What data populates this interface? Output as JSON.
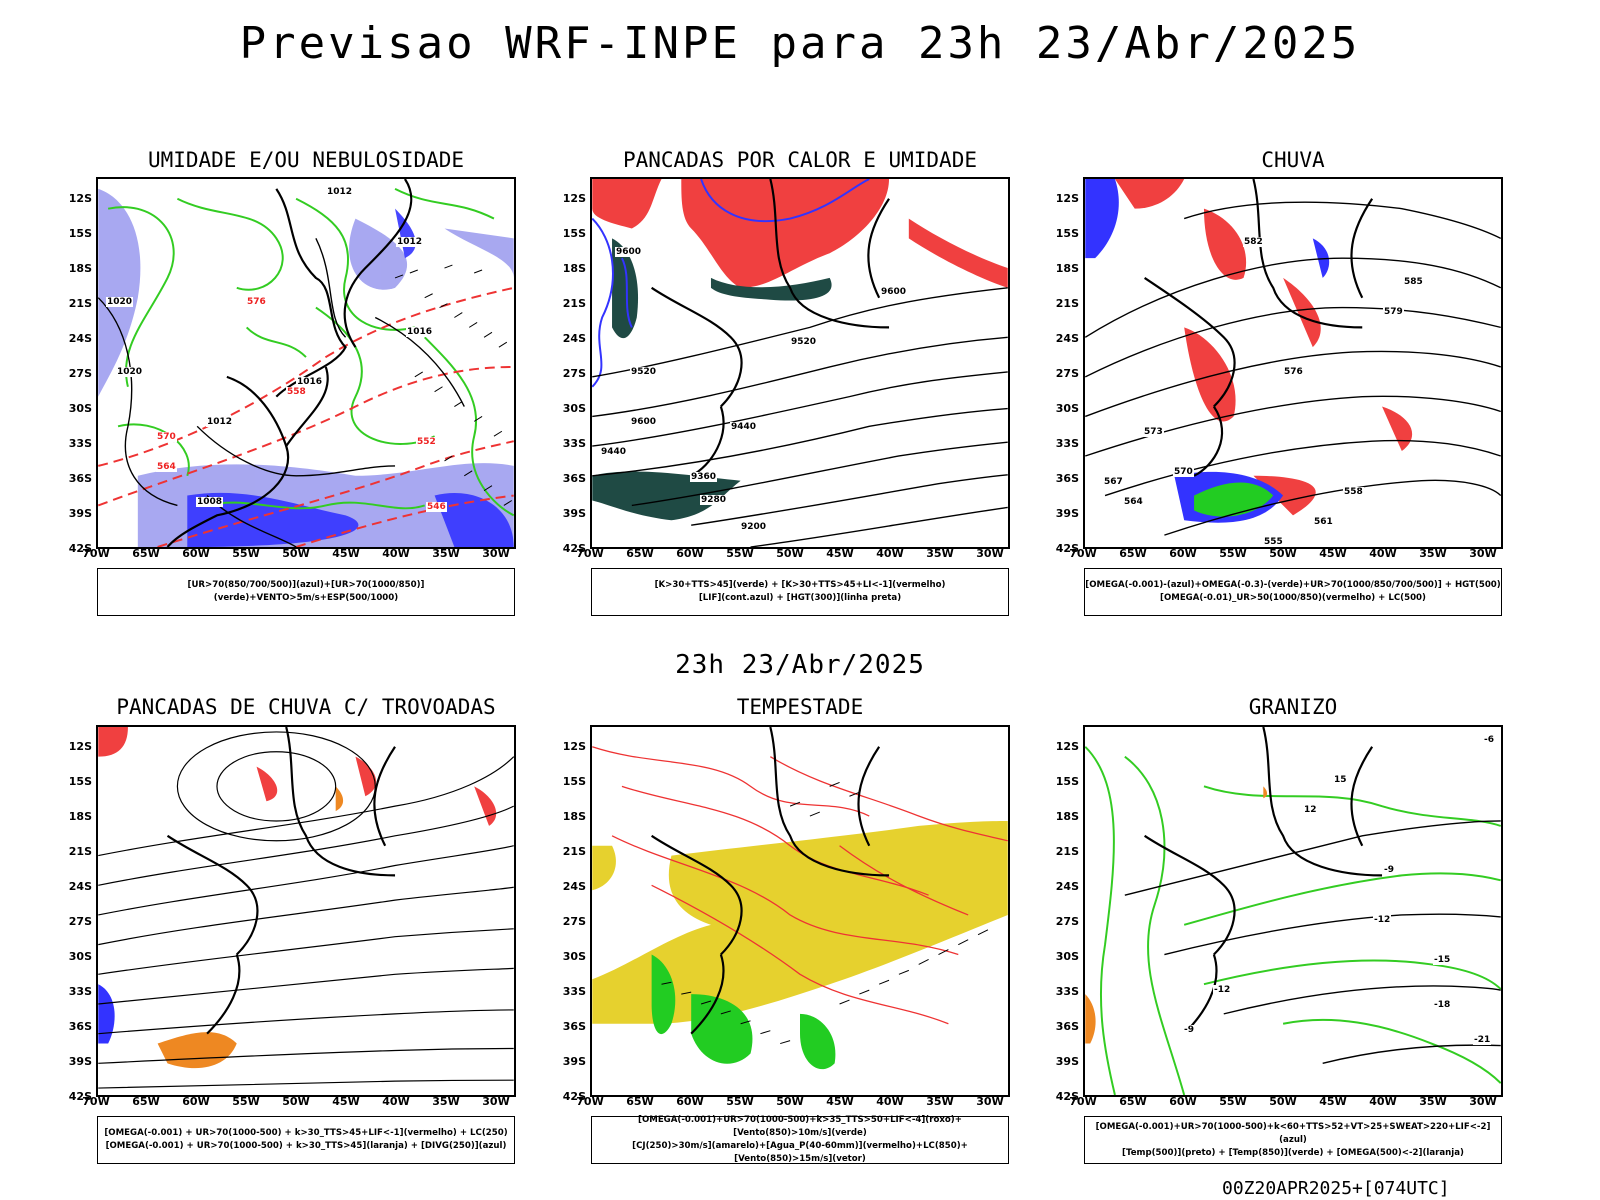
{
  "title": "Previsao WRF-INPE  para 23h 23/Abr/2025",
  "mid_date": "23h 23/Abr/2025",
  "run_stamp": "00Z20APR2025+[074UTC]",
  "lat_labels": [
    "12S",
    "15S",
    "18S",
    "21S",
    "24S",
    "27S",
    "30S",
    "33S",
    "36S",
    "39S",
    "42S"
  ],
  "lon_labels": [
    "70W",
    "65W",
    "60W",
    "55W",
    "50W",
    "45W",
    "40W",
    "35W",
    "30W"
  ],
  "panels": [
    {
      "title": "UMIDADE E/OU NEBULOSIDADE",
      "legend": [
        "[UR>70(850/700/500)](azul)+[UR>70(1000/850)](verde)+VENTO>5m/s+ESP(500/1000)"
      ],
      "contour_labels": [
        "1012",
        "1012",
        "1016",
        "1016",
        "1020",
        "1020",
        "1008",
        "1012",
        "570",
        "576",
        "564",
        "558",
        "552",
        "546"
      ]
    },
    {
      "title": "PANCADAS POR CALOR E UMIDADE",
      "legend": [
        "[K>30+TTS>45](verde) + [K>30+TTS>45+LI<-1](vermelho)",
        "[LIF](cont.azul) + [HGT(300)](linha preta)"
      ],
      "contour_labels": [
        "9600",
        "9600",
        "9520",
        "9520",
        "9440",
        "9440",
        "9360",
        "9280",
        "9200",
        "9600"
      ]
    },
    {
      "title": "CHUVA",
      "legend": [
        "[OMEGA(-0.001)-(azul)+OMEGA(-0.3)-(verde)+UR>70(1000/850/700/500)] + HGT(500)",
        "[OMEGA(-0.01)_UR>50(1000/850)(vermelho) + LC(500)"
      ],
      "contour_labels": [
        "582",
        "579",
        "576",
        "573",
        "570",
        "567",
        "564",
        "561",
        "558",
        "555",
        "585"
      ]
    },
    {
      "title": "PANCADAS DE CHUVA C/ TROVOADAS",
      "legend": [
        "[OMEGA(-0.001) + UR>70(1000-500) + k>30_TTS>45+LIF<-1](vermelho) + LC(250)",
        "[OMEGA(-0.001) + UR>70(1000-500) + k>30_TTS>45](laranja) + [DIVG(250)](azul)"
      ],
      "contour_labels": []
    },
    {
      "title": "TEMPESTADE",
      "legend": [
        "[OMEGA(-0.001)+UR>70(1000-500)+k>35_TTS>50+LIF<-4](roxo)+[Vento(850)>10m/s](verde)",
        "[CJ(250)>30m/s](amarelo)+[Agua_P(40-60mm)](vermelho)+LC(850)+[Vento(850)>15m/s](vetor)"
      ],
      "contour_labels": []
    },
    {
      "title": "GRANIZO",
      "legend": [
        "[OMEGA(-0.001)+UR>70(1000-500)+k<60+TTS>52+VT>25+SWEAT>220+LIF<-2](azul)",
        "[Temp(500)](preto) + [Temp(850)](verde) + [OMEGA(500)<-2](laranja)"
      ],
      "contour_labels": [
        "-6",
        "-9",
        "-12",
        "-15",
        "-18",
        "-21",
        "12",
        "15",
        "-12",
        "-9"
      ]
    }
  ],
  "colors": {
    "blue": "#3333ff",
    "lightblue": "#9999ee",
    "green": "#33cc22",
    "red": "#ff3333",
    "darkgreen": "#1f4a44",
    "yellow": "#e6d12e",
    "orange": "#ee8822"
  }
}
